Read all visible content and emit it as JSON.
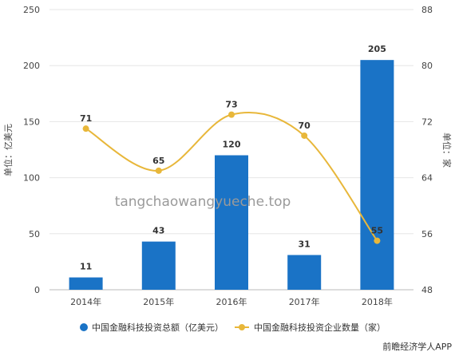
{
  "chart_data": {
    "type": "bar+line",
    "categories": [
      "2014年",
      "2015年",
      "2016年",
      "2017年",
      "2018年"
    ],
    "series": [
      {
        "name": "中国金融科技投资总额（亿美元）",
        "type": "bar",
        "axis": "left",
        "color": "#1a73c6",
        "values": [
          11,
          43,
          120,
          31,
          205
        ],
        "labels": [
          "11",
          "43",
          "120",
          "31",
          "205"
        ]
      },
      {
        "name": "中国金融科技投资企业数量（家）",
        "type": "line",
        "axis": "right",
        "color": "#e8b73a",
        "values": [
          71,
          65,
          73,
          70,
          55
        ],
        "labels": [
          "71",
          "65",
          "73",
          "70",
          "55"
        ]
      }
    ],
    "ylabel_left": "单位：亿美元",
    "ylabel_right": "单位：家",
    "ylim_left": [
      0,
      250
    ],
    "yticks_left": [
      0,
      50,
      100,
      150,
      200,
      250
    ],
    "ylim_right": [
      48,
      88
    ],
    "yticks_right": [
      48,
      56,
      64,
      72,
      80,
      88
    ],
    "grid": true,
    "legend_position": "bottom"
  },
  "watermark": "tangchaowangyueche.top",
  "brand": "前瞻经济学人APP",
  "colors": {
    "grid": "#e6e6e6",
    "axis": "#bbbbbb"
  }
}
